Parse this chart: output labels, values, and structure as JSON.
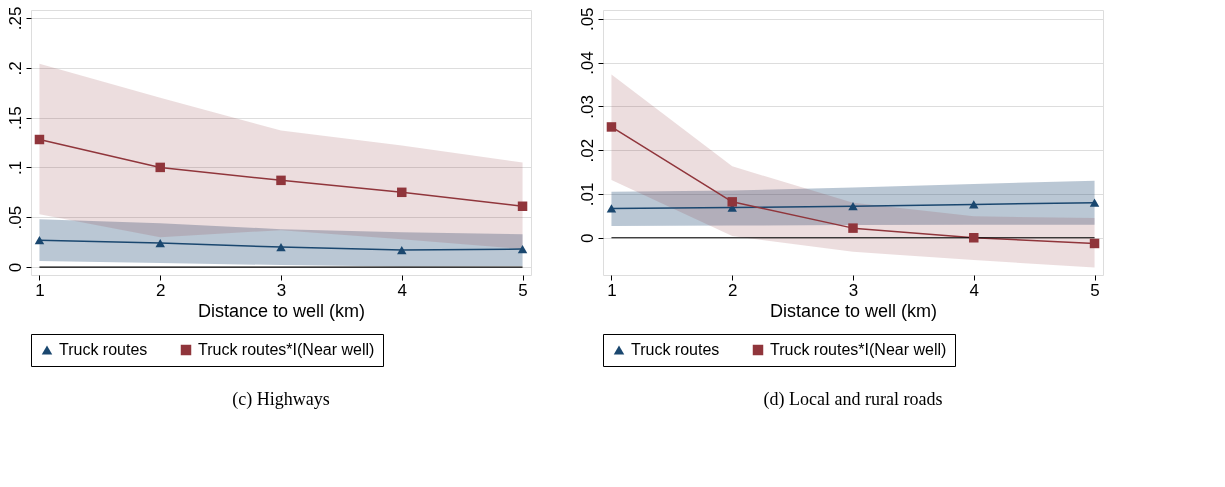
{
  "chart_data": [
    {
      "type": "line",
      "title": "(c) Highways",
      "xlabel": "Distance to well (km)",
      "x": [
        1,
        2,
        3,
        4,
        5
      ],
      "xlim": [
        0.93,
        5.07
      ],
      "xticks": [
        1,
        2,
        3,
        4,
        5
      ],
      "ylim": [
        -0.008,
        0.258
      ],
      "yticks": [
        {
          "value": 0,
          "label": "0"
        },
        {
          "value": 0.05,
          "label": ".05"
        },
        {
          "value": 0.1,
          "label": ".1"
        },
        {
          "value": 0.15,
          "label": ".15"
        },
        {
          "value": 0.2,
          "label": ".2"
        },
        {
          "value": 0.25,
          "label": ".25"
        }
      ],
      "grid": "y",
      "legend": "bottom",
      "line_style": "solid",
      "ref_lines": [
        {
          "axis": "y",
          "value": 0,
          "color": "#000000"
        }
      ],
      "series": [
        {
          "name": "Truck routes",
          "color": "#1a476f",
          "marker": "triangle",
          "values": [
            0.027,
            0.024,
            0.02,
            0.017,
            0.018
          ],
          "lower": [
            0.006,
            0.004,
            0.002,
            0.0005,
            0.001
          ],
          "upper": [
            0.048,
            0.044,
            0.038,
            0.035,
            0.033
          ]
        },
        {
          "name": "Truck routes*I(Near well)",
          "color": "#90353b",
          "marker": "square",
          "values": [
            0.128,
            0.1,
            0.087,
            0.075,
            0.061
          ],
          "lower": [
            0.053,
            0.03,
            0.037,
            0.028,
            0.018
          ],
          "upper": [
            0.204,
            0.17,
            0.137,
            0.122,
            0.105
          ]
        }
      ]
    },
    {
      "type": "line",
      "title": "(d) Local and rural roads",
      "xlabel": "Distance to well (km)",
      "x": [
        1,
        2,
        3,
        4,
        5
      ],
      "xlim": [
        0.93,
        5.07
      ],
      "xticks": [
        1,
        2,
        3,
        4,
        5
      ],
      "ylim": [
        -0.0085,
        0.052
      ],
      "yticks": [
        {
          "value": 0,
          "label": "0"
        },
        {
          "value": 0.01,
          "label": ".01"
        },
        {
          "value": 0.02,
          "label": ".02"
        },
        {
          "value": 0.03,
          "label": ".03"
        },
        {
          "value": 0.04,
          "label": ".04"
        },
        {
          "value": 0.05,
          "label": ".05"
        }
      ],
      "grid": "y",
      "legend": "bottom",
      "line_style": "solid",
      "ref_lines": [
        {
          "axis": "y",
          "value": 0,
          "color": "#000000"
        }
      ],
      "series": [
        {
          "name": "Truck routes",
          "color": "#1a476f",
          "marker": "triangle",
          "values": [
            0.0067,
            0.0069,
            0.0072,
            0.0076,
            0.008
          ],
          "lower": [
            0.0027,
            0.0028,
            0.0029,
            0.003,
            0.003
          ],
          "upper": [
            0.0105,
            0.0108,
            0.0115,
            0.0123,
            0.013
          ]
        },
        {
          "name": "Truck routes*I(Near well)",
          "color": "#90353b",
          "marker": "square",
          "values": [
            0.0253,
            0.0082,
            0.0022,
            0.0,
            -0.0013
          ],
          "lower": [
            0.0132,
            0.0004,
            -0.0032,
            -0.0051,
            -0.0068
          ],
          "upper": [
            0.0373,
            0.0163,
            0.008,
            0.0049,
            0.0045
          ]
        }
      ]
    }
  ]
}
